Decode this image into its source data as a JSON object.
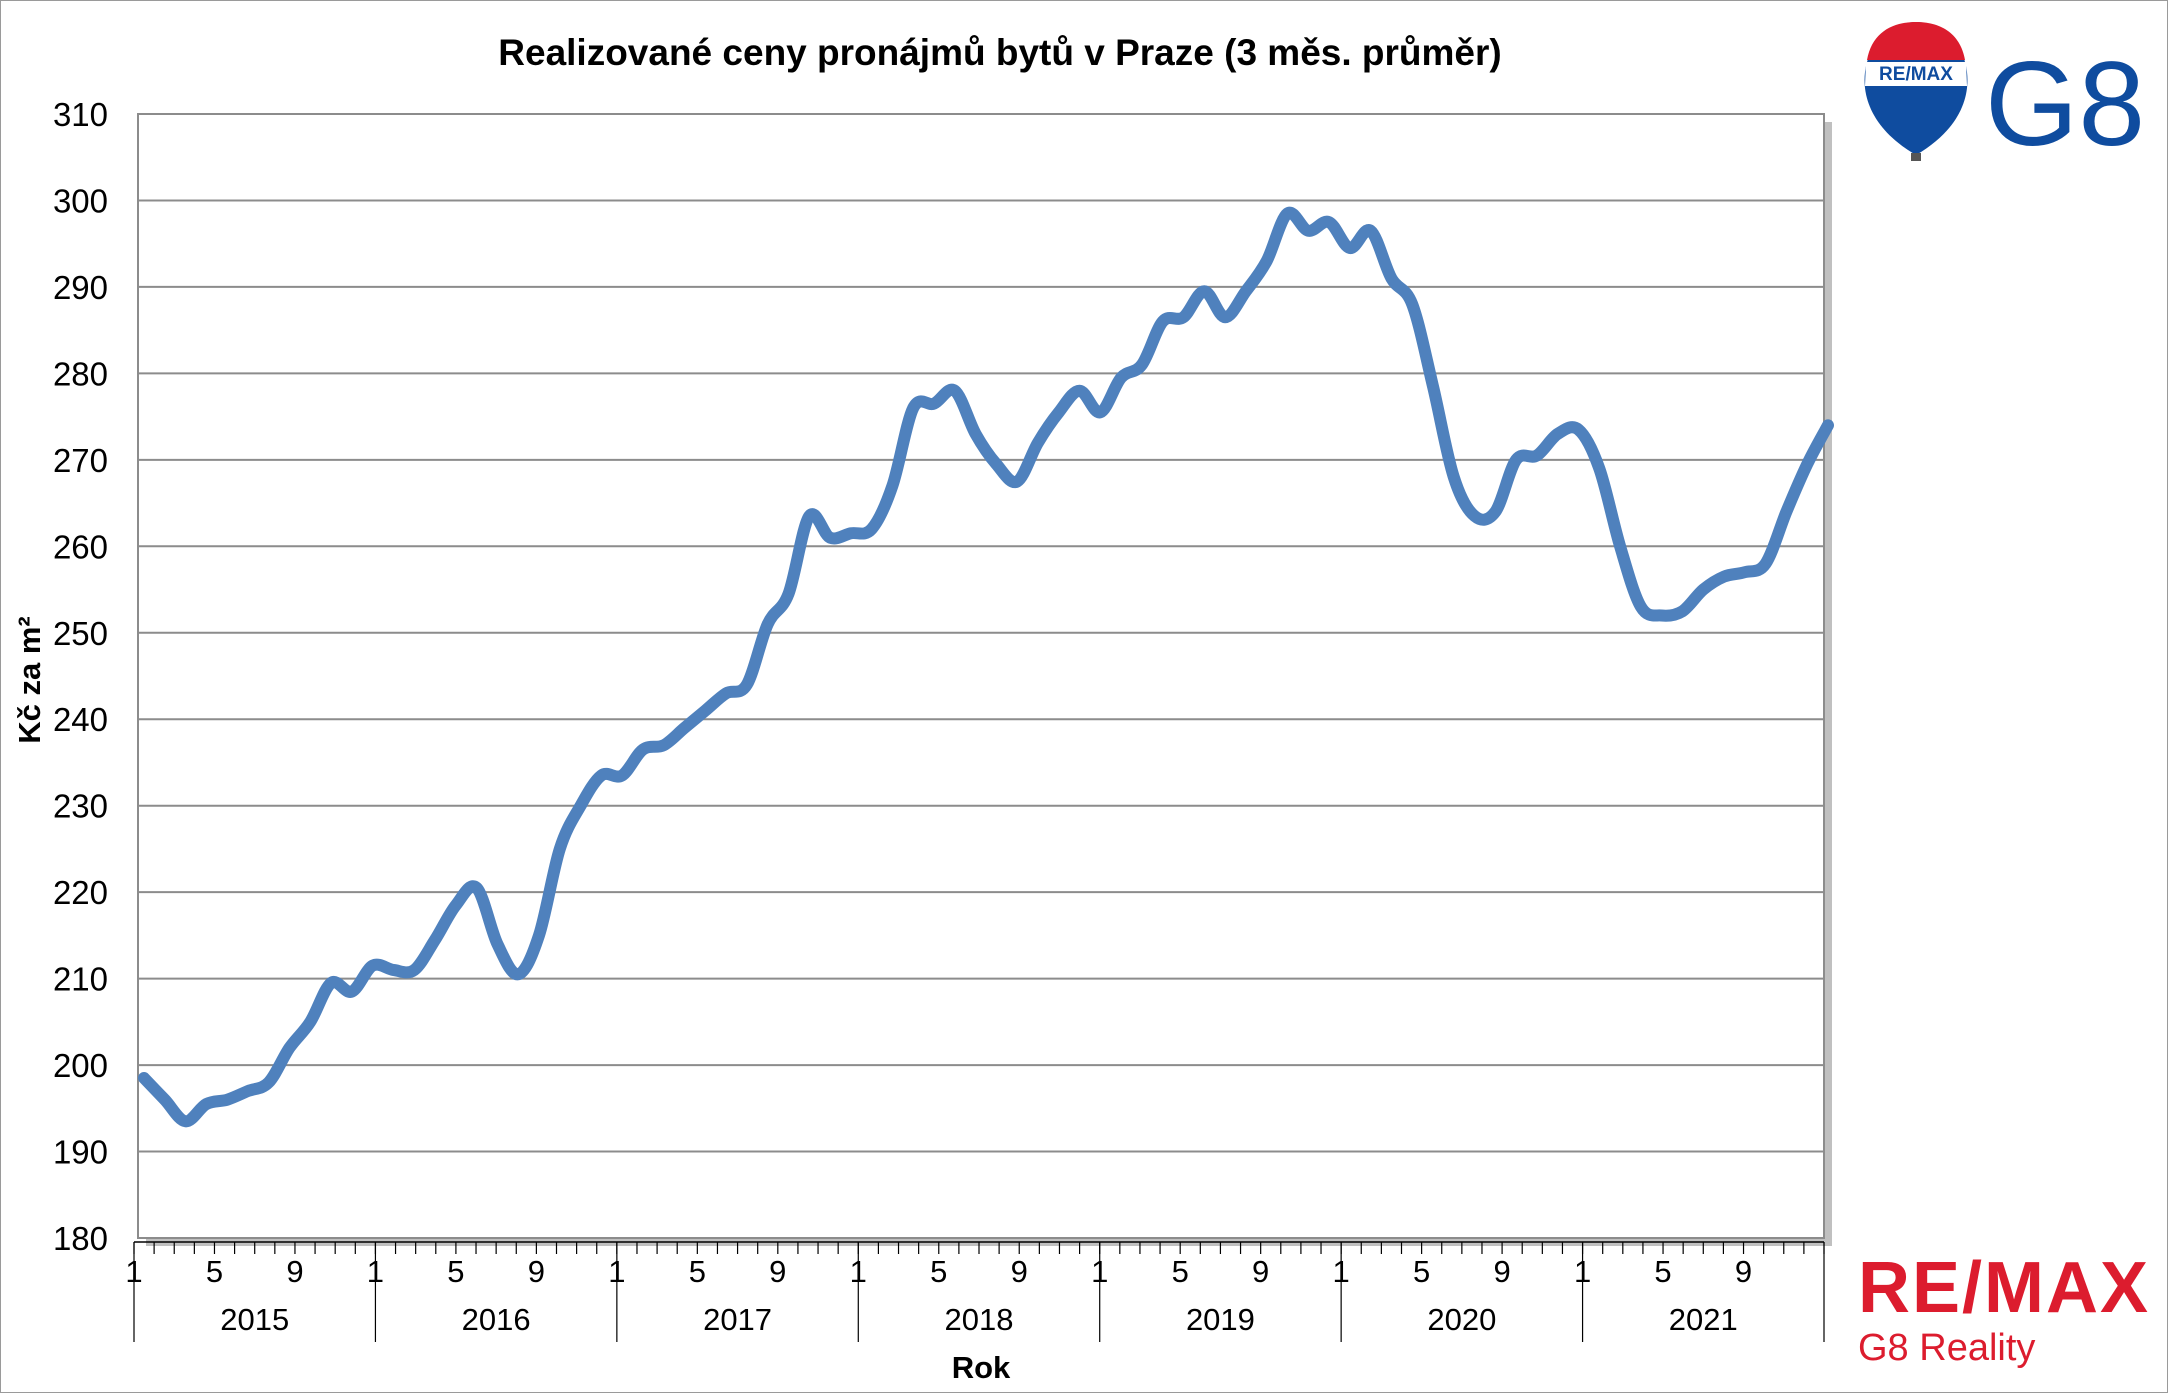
{
  "logos": {
    "balloon_text": "RE/MAX",
    "g8_text": "G8",
    "footer_wordmark": "RE/MAX",
    "footer_sub": "G8 Reality",
    "colors": {
      "red": "#dc1c2e",
      "blue": "#0f4c9f",
      "white": "#ffffff"
    }
  },
  "chart_data": {
    "type": "line",
    "title": "Realizované ceny pronájmů bytů v Praze (3 měs. průměr)",
    "ylabel": "Kč za m²",
    "xlabel": "Rok",
    "ylim": [
      180,
      310
    ],
    "yticks": [
      180,
      190,
      200,
      210,
      220,
      230,
      240,
      250,
      260,
      270,
      280,
      290,
      300,
      310
    ],
    "years": [
      "2015",
      "2016",
      "2017",
      "2018",
      "2019",
      "2020",
      "2021"
    ],
    "month_tick_labels": [
      "1",
      "5",
      "9"
    ],
    "grid": true,
    "series_color": "#4f81bd",
    "series": [
      {
        "values": [
          198.5,
          196,
          193.5,
          195.5,
          196,
          197,
          198,
          202,
          205,
          209.5,
          208.5,
          211.5,
          211,
          211,
          214.5,
          218.5,
          220.5,
          214,
          210.5,
          215,
          225,
          230,
          233.5,
          233.5,
          236.5,
          237,
          239,
          241,
          243,
          244,
          251,
          254.5,
          263.5,
          261,
          261.5,
          262,
          267,
          276,
          276.5,
          278,
          273,
          269.5,
          267.5,
          272,
          275.5,
          278,
          275.5,
          279.5,
          281,
          286,
          286.5,
          289.5,
          286.5,
          289.5,
          293,
          298.5,
          296.5,
          297.5,
          294.5,
          296.5,
          291,
          288,
          278.5,
          268,
          263.5,
          264,
          270,
          270.5,
          273,
          273.5,
          269,
          260,
          253,
          252,
          252.5,
          255,
          256.5,
          257,
          258,
          264,
          269.5,
          274
        ]
      }
    ]
  }
}
